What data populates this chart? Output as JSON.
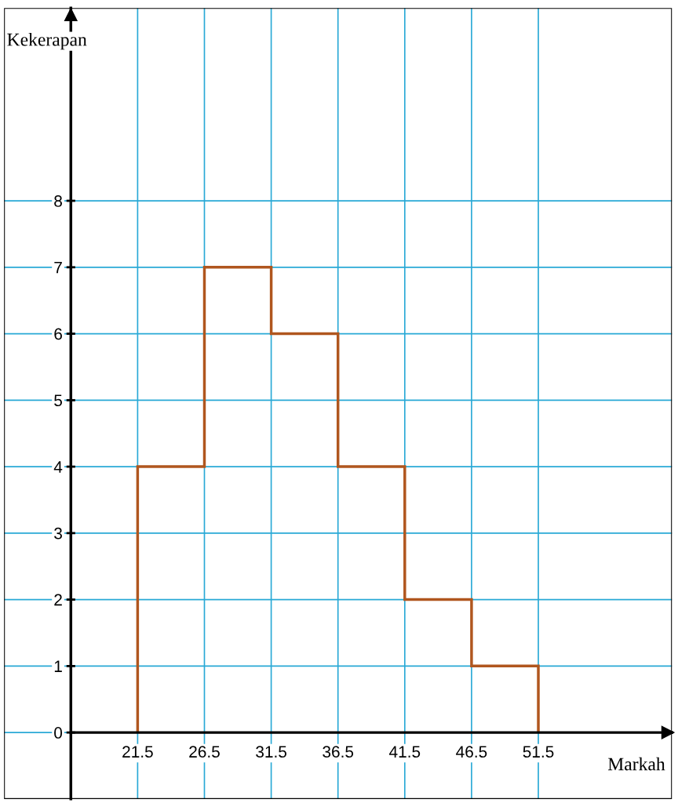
{
  "chart_data": {
    "type": "histogram",
    "xlabel": "Markah",
    "ylabel": "Kekerapan",
    "bins": [
      21.5,
      26.5,
      31.5,
      36.5,
      41.5,
      46.5,
      51.5
    ],
    "values": [
      4,
      7,
      6,
      4,
      2,
      1
    ],
    "color": "#b0561e",
    "xlim": [
      11.5,
      61.5
    ],
    "ylim": [
      -1,
      10.9
    ],
    "xticks": [
      21.5,
      26.5,
      31.5,
      36.5,
      41.5,
      46.5,
      51.5
    ],
    "yticks": [
      0,
      1,
      2,
      3,
      4,
      5,
      6,
      7,
      8
    ],
    "grid": true
  }
}
